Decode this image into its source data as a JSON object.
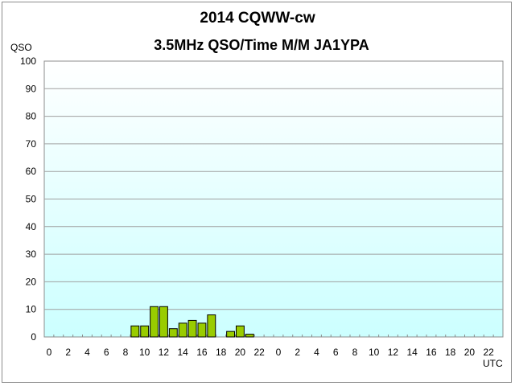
{
  "chart_data": {
    "type": "bar",
    "title": "2014  CQWW-cw",
    "subtitle": "3.5MHz QSO/Time  M/M JA1YPA",
    "ylabel": "QSO",
    "xlabel": "UTC",
    "ylim": [
      0,
      100
    ],
    "yticks": [
      0,
      10,
      20,
      30,
      40,
      50,
      60,
      70,
      80,
      90,
      100
    ],
    "grid": true,
    "categories": [
      "0",
      "1",
      "2",
      "3",
      "4",
      "5",
      "6",
      "7",
      "8",
      "9",
      "10",
      "11",
      "12",
      "13",
      "14",
      "15",
      "16",
      "17",
      "18",
      "19",
      "20",
      "21",
      "22",
      "23",
      "0",
      "1",
      "2",
      "3",
      "4",
      "5",
      "6",
      "7",
      "8",
      "9",
      "10",
      "11",
      "12",
      "13",
      "14",
      "15",
      "16",
      "17",
      "18",
      "19",
      "20",
      "21",
      "22",
      "23"
    ],
    "tick_labels": [
      "0",
      "",
      "2",
      "",
      "4",
      "",
      "6",
      "",
      "8",
      "",
      "10",
      "",
      "12",
      "",
      "14",
      "",
      "16",
      "",
      "18",
      "",
      "20",
      "",
      "22",
      "",
      "0",
      "",
      "2",
      "",
      "4",
      "",
      "6",
      "",
      "8",
      "",
      "10",
      "",
      "12",
      "",
      "14",
      "",
      "16",
      "",
      "18",
      "",
      "20",
      "",
      "22",
      ""
    ],
    "values": [
      0,
      0,
      0,
      0,
      0,
      0,
      0,
      0,
      0,
      4,
      4,
      11,
      11,
      3,
      5,
      6,
      5,
      8,
      0,
      2,
      4,
      1,
      0,
      0,
      0,
      0,
      0,
      0,
      0,
      0,
      0,
      0,
      0,
      0,
      0,
      0,
      0,
      0,
      0,
      0,
      0,
      0,
      0,
      0,
      0,
      0,
      0,
      0
    ],
    "colors": {
      "bar": "#99cc00",
      "plot_background": "#ccffff",
      "grid": "#a0a0a0"
    }
  }
}
